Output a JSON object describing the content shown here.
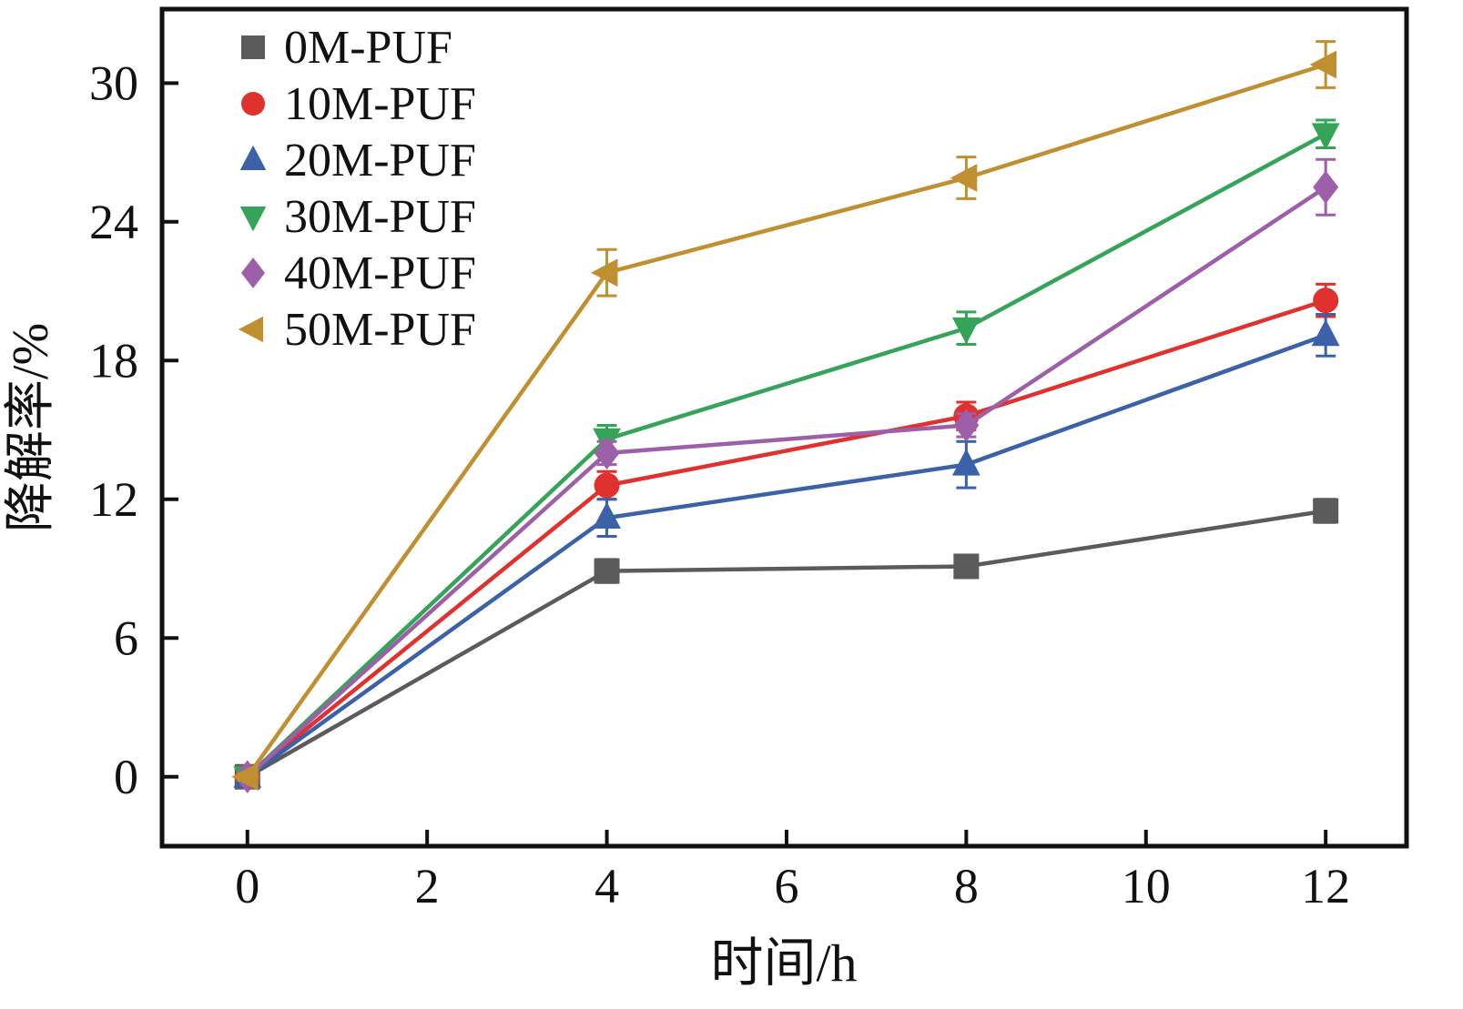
{
  "chart_data": {
    "type": "line",
    "title": "",
    "xlabel": "时间/h",
    "ylabel": "降解率/%",
    "x": [
      0,
      4,
      8,
      12
    ],
    "xlim": [
      -0.95,
      12.9
    ],
    "ylim": [
      -3.0,
      33.2
    ],
    "x_ticks": [
      0,
      2,
      4,
      6,
      8,
      10,
      12
    ],
    "y_ticks": [
      0,
      6,
      12,
      18,
      24,
      30
    ],
    "grid": false,
    "legend_position": "top-left",
    "frame_color": "#111111",
    "series": [
      {
        "name": "0M-PUF",
        "color": "#5b5b5b",
        "marker": "square",
        "values": [
          0,
          8.9,
          9.1,
          11.5
        ],
        "errors": [
          0.15,
          0.5,
          0.3,
          0.5
        ]
      },
      {
        "name": "10M-PUF",
        "color": "#e0312e",
        "marker": "circle",
        "values": [
          0,
          12.6,
          15.6,
          20.6
        ],
        "errors": [
          0.15,
          0.6,
          0.6,
          0.7
        ]
      },
      {
        "name": "20M-PUF",
        "color": "#3b62a8",
        "marker": "triangle-up",
        "values": [
          0,
          11.2,
          13.5,
          19.1
        ],
        "errors": [
          0.15,
          0.8,
          1.0,
          0.9
        ]
      },
      {
        "name": "30M-PUF",
        "color": "#35a358",
        "marker": "triangle-down",
        "values": [
          0,
          14.6,
          19.4,
          27.8
        ],
        "errors": [
          0.15,
          0.6,
          0.7,
          0.6
        ]
      },
      {
        "name": "40M-PUF",
        "color": "#9c5fa8",
        "marker": "diamond",
        "values": [
          0,
          14.0,
          15.2,
          25.5
        ],
        "errors": [
          0.15,
          0.5,
          0.5,
          1.2
        ]
      },
      {
        "name": "50M-PUF",
        "color": "#c09030",
        "marker": "triangle-left",
        "values": [
          0,
          21.8,
          25.9,
          30.8
        ],
        "errors": [
          0.15,
          1.0,
          0.9,
          1.0
        ]
      }
    ]
  }
}
